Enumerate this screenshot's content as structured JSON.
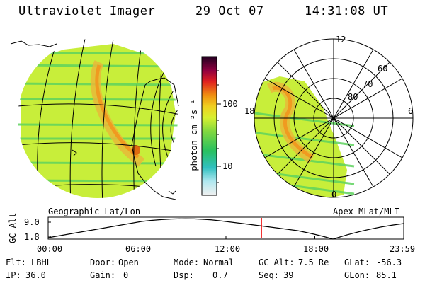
{
  "header": {
    "title": "Ultraviolet Imager",
    "date": "29 Oct 07",
    "time": "14:31:08 UT"
  },
  "colorbar": {
    "unit_label": "photon cm⁻²s⁻¹",
    "tick_100": "100",
    "tick_10": "10"
  },
  "polar_plot": {
    "ring_labels": [
      "80",
      "70",
      "60"
    ],
    "mlt_labels": {
      "top": "12",
      "left": "18",
      "right": "6",
      "bottom": "0"
    },
    "caption": "Apex MLat/MLT"
  },
  "geo_plot": {
    "caption": "Geographic Lat/Lon"
  },
  "timeline": {
    "ylabel": "GC Alt",
    "y_top": "9.0",
    "y_bottom": "1.8",
    "x_ticks": [
      "00:00",
      "06:00",
      "12:00",
      "18:00",
      "23:59"
    ],
    "current_time_fraction": 0.6
  },
  "footer": {
    "row1": [
      {
        "key": "Flt:",
        "value": "LBHL"
      },
      {
        "key": "Door:",
        "value": "Open"
      },
      {
        "key": "Mode:",
        "value": "Normal"
      },
      {
        "key": "GC Alt:",
        "value": "7.5 Re"
      },
      {
        "key": "GLat:",
        "value": "-56.3"
      }
    ],
    "row2": [
      {
        "key": "IP:",
        "value": "36.0"
      },
      {
        "key": "Gain:",
        "value": "0"
      },
      {
        "key": "Dsp:",
        "value": "0.7"
      },
      {
        "key": "Seq:",
        "value": "39"
      },
      {
        "key": "GLon:",
        "value": "85.1"
      }
    ]
  },
  "colors": {
    "accent_red": "#ee0000",
    "base_green": "#c8ee3a",
    "stripe_green": "#4fcf4f"
  }
}
